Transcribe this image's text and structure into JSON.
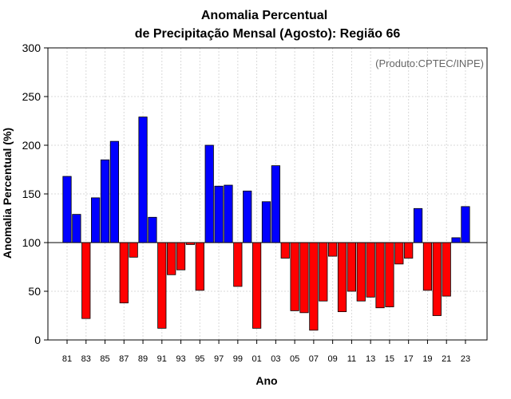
{
  "chart_data": {
    "type": "bar",
    "title_line1": "Anomalia Percentual",
    "title_line2": "de Precipitação Mensal (Agosto): Região 66",
    "xlabel": "Ano",
    "ylabel": "Anomalia Percentual (%)",
    "credit": "(Produto:CPTEC/INPE)",
    "baseline": 100,
    "ylim": [
      0,
      300
    ],
    "yticks": [
      0,
      50,
      100,
      150,
      200,
      250,
      300
    ],
    "colors": {
      "above": "#0000ff",
      "below": "#ff0000"
    },
    "categories": [
      "81",
      "82",
      "83",
      "84",
      "85",
      "86",
      "87",
      "88",
      "89",
      "90",
      "91",
      "92",
      "93",
      "94",
      "95",
      "96",
      "97",
      "98",
      "99",
      "00",
      "01",
      "02",
      "03",
      "04",
      "05",
      "06",
      "07",
      "08",
      "09",
      "10",
      "11",
      "12",
      "13",
      "14",
      "15",
      "16",
      "17",
      "18",
      "19",
      "20",
      "21",
      "22",
      "23"
    ],
    "xtick_labels": [
      "81",
      "83",
      "85",
      "87",
      "89",
      "91",
      "93",
      "95",
      "97",
      "99",
      "01",
      "03",
      "05",
      "07",
      "09",
      "11",
      "13",
      "15",
      "17",
      "19",
      "21",
      "23"
    ],
    "values": [
      168,
      129,
      22,
      146,
      185,
      204,
      38,
      85,
      229,
      126,
      12,
      67,
      72,
      98,
      51,
      200,
      158,
      159,
      55,
      153,
      12,
      142,
      179,
      84,
      30,
      28,
      10,
      40,
      86,
      29,
      50,
      40,
      44,
      33,
      34,
      78,
      84,
      135,
      51,
      25,
      45,
      105,
      137
    ]
  }
}
